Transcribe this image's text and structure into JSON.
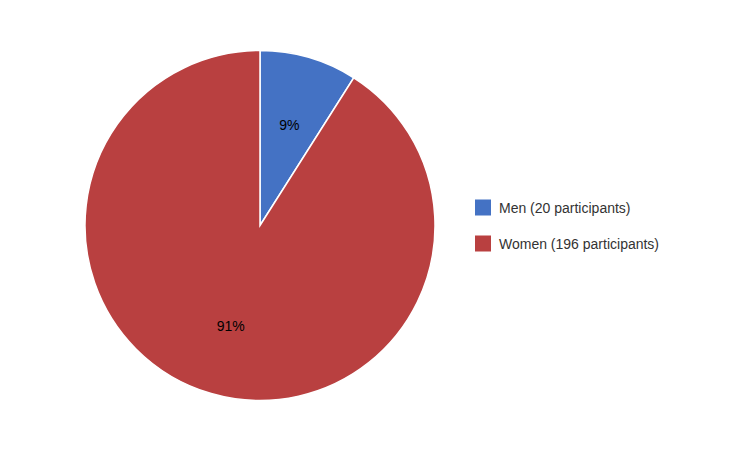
{
  "chart_data": {
    "type": "pie",
    "categories": [
      "Men (20 participants)",
      "Women (196 participants)"
    ],
    "values": [
      9,
      91
    ],
    "value_labels": [
      "9%",
      "91%"
    ],
    "colors": [
      "#4472C4",
      "#B94040"
    ],
    "data_labels": true,
    "legend": "right"
  }
}
